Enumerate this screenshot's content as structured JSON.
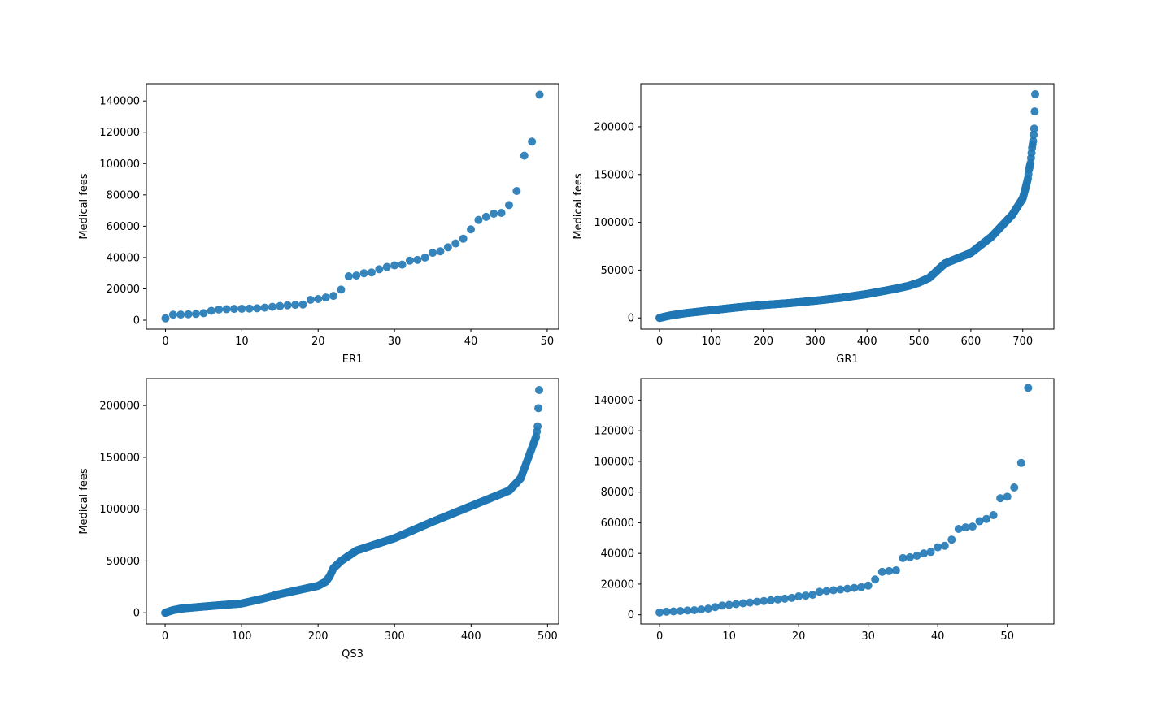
{
  "colors": {
    "marker": "#1f77b4",
    "axes": "#000000",
    "background": "#ffffff"
  },
  "chart_data": [
    {
      "type": "scatter",
      "xlabel": "ER1",
      "ylabel": "Medical fees",
      "xlim": [
        -2.5,
        51.5
      ],
      "ylim": [
        -5700,
        151000
      ],
      "xticks": [
        0,
        10,
        20,
        30,
        40,
        50
      ],
      "yticks": [
        0,
        20000,
        40000,
        60000,
        80000,
        100000,
        120000,
        140000
      ],
      "y": [
        1200,
        3500,
        3600,
        3800,
        4000,
        4500,
        6000,
        6800,
        7000,
        7200,
        7300,
        7400,
        7600,
        8000,
        8500,
        9000,
        9500,
        9800,
        10000,
        13000,
        13500,
        14500,
        15500,
        19500,
        28000,
        28500,
        30000,
        30500,
        32500,
        34000,
        35000,
        35500,
        38000,
        38500,
        40000,
        43000,
        44000,
        46500,
        49000,
        52000,
        58000,
        64000,
        66000,
        68000,
        68500,
        73500,
        82500,
        105000,
        114000,
        144000
      ]
    },
    {
      "type": "scatter",
      "xlabel": "GR1",
      "ylabel": "Medical fees",
      "xlim": [
        -36,
        760
      ],
      "ylim": [
        -11700,
        245000
      ],
      "xticks": [
        0,
        100,
        200,
        300,
        400,
        500,
        600,
        700
      ],
      "yticks": [
        0,
        50000,
        100000,
        150000,
        200000
      ],
      "n": 725,
      "x": [
        0,
        20,
        50,
        100,
        150,
        200,
        250,
        300,
        350,
        400,
        450,
        480,
        500,
        520,
        530,
        550,
        600,
        640,
        680,
        700,
        705,
        710,
        712,
        715,
        718,
        720,
        722,
        724
      ],
      "y": [
        0,
        2500,
        5000,
        8000,
        11000,
        13500,
        15500,
        18000,
        21000,
        25000,
        30000,
        33500,
        37000,
        42000,
        47000,
        57000,
        68000,
        85000,
        108000,
        125000,
        135000,
        146000,
        155000,
        162000,
        178000,
        185000,
        198000,
        234000
      ]
    },
    {
      "type": "scatter",
      "xlabel": "QS3",
      "ylabel": "Medical fees",
      "xlim": [
        -24.5,
        514.5
      ],
      "ylim": [
        -10800,
        226000
      ],
      "xticks": [
        0,
        100,
        200,
        300,
        400,
        500
      ],
      "yticks": [
        0,
        50000,
        100000,
        150000,
        200000
      ],
      "n": 490,
      "x": [
        0,
        10,
        20,
        50,
        100,
        130,
        150,
        200,
        210,
        215,
        220,
        230,
        250,
        300,
        350,
        400,
        450,
        465,
        470,
        475,
        480,
        485,
        487,
        489
      ],
      "y": [
        0,
        2500,
        4000,
        6000,
        9000,
        14000,
        18000,
        26000,
        30000,
        35000,
        43000,
        50000,
        60000,
        72000,
        88000,
        103000,
        118000,
        130000,
        140000,
        150000,
        160000,
        170000,
        180000,
        215000
      ]
    },
    {
      "type": "scatter",
      "xlabel": "",
      "ylabel": "",
      "xlim": [
        -2.7,
        56.7
      ],
      "ylim": [
        -6000,
        154000
      ],
      "xticks": [
        0,
        10,
        20,
        30,
        40,
        50
      ],
      "yticks": [
        0,
        20000,
        40000,
        60000,
        80000,
        100000,
        120000,
        140000
      ],
      "y": [
        1500,
        2000,
        2200,
        2500,
        2800,
        3000,
        3500,
        4000,
        5000,
        6000,
        6500,
        7000,
        7500,
        8000,
        8500,
        9000,
        9500,
        10000,
        10500,
        11000,
        12000,
        12500,
        13000,
        15000,
        15500,
        16000,
        16500,
        17000,
        17500,
        18000,
        19000,
        23000,
        28000,
        28500,
        29000,
        37000,
        37500,
        38500,
        40000,
        41000,
        44000,
        45000,
        49000,
        56000,
        57000,
        57500,
        61000,
        62500,
        65000,
        76000,
        77000,
        83000,
        99000,
        148000
      ]
    }
  ]
}
